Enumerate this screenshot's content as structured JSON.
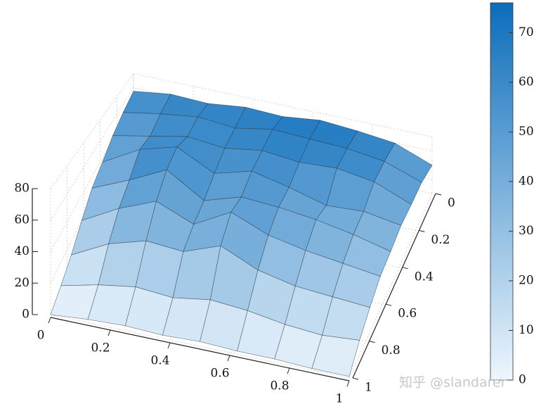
{
  "chart_data": {
    "type": "surface",
    "x": [
      0,
      0.125,
      0.25,
      0.375,
      0.5,
      0.625,
      0.75,
      0.875,
      1
    ],
    "y": [
      0,
      0.125,
      0.25,
      0.375,
      0.5,
      0.625,
      0.75,
      0.875,
      1
    ],
    "z": [
      [
        55,
        62,
        60,
        66,
        64,
        70,
        66,
        60,
        40
      ],
      [
        50,
        58,
        64,
        60,
        68,
        66,
        64,
        58,
        42
      ],
      [
        44,
        52,
        60,
        56,
        62,
        58,
        60,
        54,
        38
      ],
      [
        36,
        56,
        66,
        48,
        58,
        50,
        40,
        42,
        36
      ],
      [
        30,
        44,
        60,
        40,
        50,
        48,
        44,
        38,
        30
      ],
      [
        20,
        36,
        48,
        36,
        52,
        40,
        34,
        30,
        26
      ],
      [
        10,
        24,
        32,
        30,
        40,
        28,
        22,
        20,
        18
      ],
      [
        4,
        10,
        14,
        12,
        16,
        14,
        10,
        8,
        10
      ],
      [
        0,
        2,
        3,
        2,
        3,
        2,
        2,
        1,
        1
      ]
    ],
    "xlim": [
      0,
      1
    ],
    "xticks": [
      0,
      0.2,
      0.4,
      0.6,
      0.8,
      1
    ],
    "ylim": [
      0,
      1
    ],
    "yticks": [
      0,
      0.2,
      0.4,
      0.6,
      0.8,
      1
    ],
    "zlim": [
      0,
      80
    ],
    "zticks": [
      0,
      20,
      40,
      60,
      80
    ],
    "clim": [
      0,
      76
    ],
    "cticks": [
      0,
      10,
      20,
      30,
      40,
      50,
      60,
      70
    ],
    "colormap": [
      "#eef6fd",
      "#0b6dbb"
    ],
    "grid": true,
    "watermark": "知乎 @slandarer"
  }
}
